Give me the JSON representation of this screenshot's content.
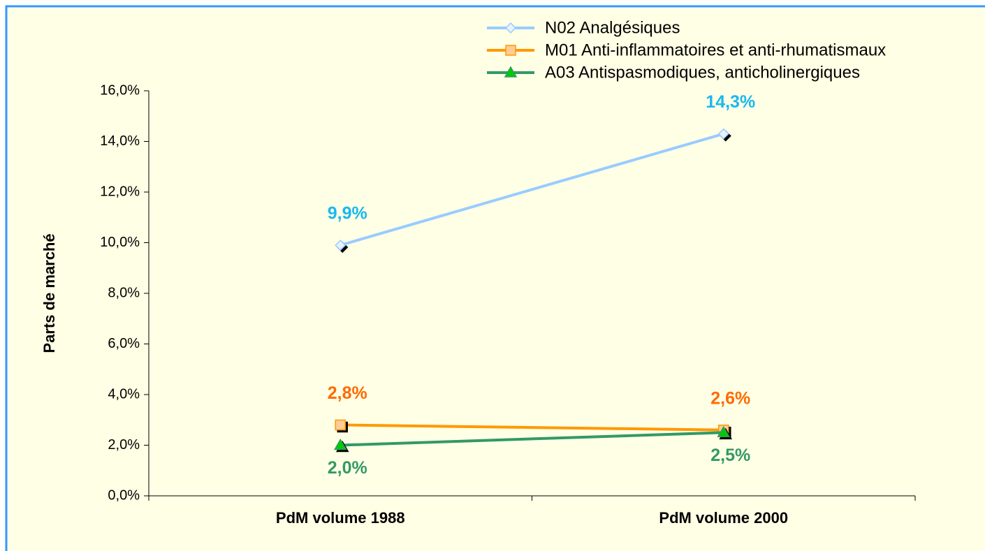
{
  "chart_data": {
    "type": "line",
    "y_label": "Parts de marché",
    "categories": [
      "PdM volume 1988",
      "PdM volume 2000"
    ],
    "ylim": [
      0,
      16
    ],
    "yticks": [
      {
        "value": 0,
        "label": "0,0%"
      },
      {
        "value": 2,
        "label": "2,0%"
      },
      {
        "value": 4,
        "label": "4,0%"
      },
      {
        "value": 6,
        "label": "6,0%"
      },
      {
        "value": 8,
        "label": "8,0%"
      },
      {
        "value": 10,
        "label": "10,0%"
      },
      {
        "value": 12,
        "label": "12,0%"
      },
      {
        "value": 14,
        "label": "14,0%"
      },
      {
        "value": 16,
        "label": "16,0%"
      }
    ],
    "legend": "top-right",
    "series": [
      {
        "name": "N02 Analgésiques",
        "color": "#99ccff",
        "marker": "diamond",
        "marker_fill": "#e6f2ff",
        "label_color": "#1ab8f0",
        "values": [
          9.9,
          14.3
        ],
        "value_labels": [
          "9,9%",
          "14,3%"
        ]
      },
      {
        "name": "M01 Anti-inflammatoires et anti-rhumatismaux",
        "color": "#ff9900",
        "marker": "square",
        "marker_fill": "#ffcc99",
        "label_color": "#ff6a00",
        "values": [
          2.8,
          2.6
        ],
        "value_labels": [
          "2,8%",
          "2,6%"
        ]
      },
      {
        "name": "A03 Antispasmodiques, anticholinergiques",
        "color": "#339966",
        "marker": "triangle",
        "marker_fill": "#00cc00",
        "label_color": "#339966",
        "values": [
          2.0,
          2.5
        ],
        "value_labels": [
          "2,0%",
          "2,5%"
        ]
      }
    ]
  }
}
